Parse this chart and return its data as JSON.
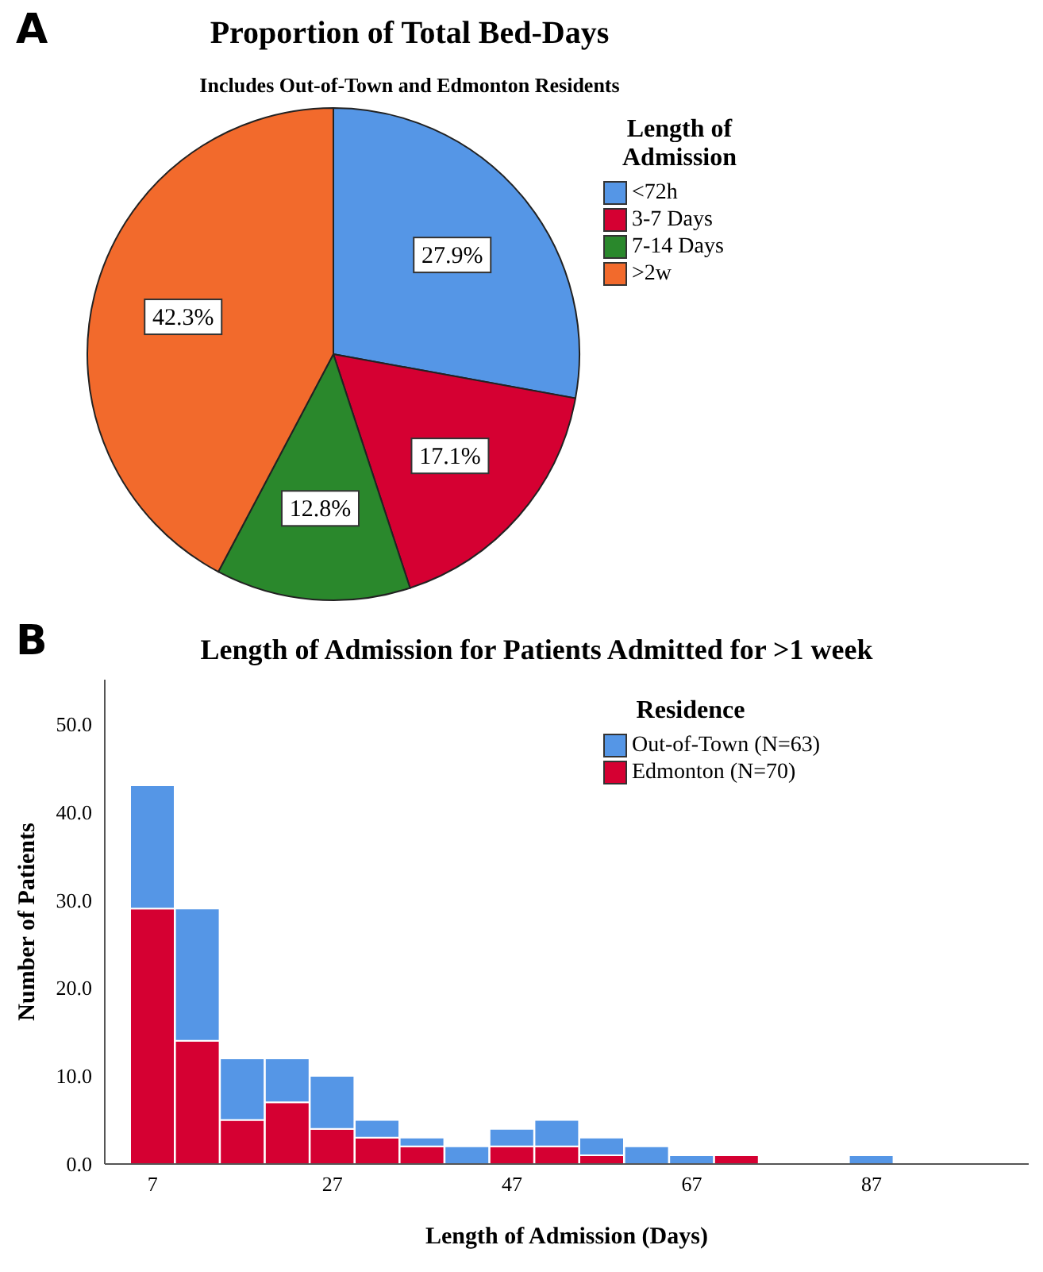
{
  "chart_data": [
    {
      "type": "pie",
      "title": "Proportion of Total Bed-Days",
      "subtitle": "Includes Out-of-Town and Edmonton Residents",
      "legend_title": "Length of Admission",
      "annotations": [
        "A"
      ],
      "legend": "right",
      "categories": [
        "<72h",
        "3-7 Days",
        "7-14 Days",
        ">2w"
      ],
      "values": [
        27.9,
        17.1,
        12.8,
        42.3
      ],
      "value_labels": [
        "27.9%",
        "17.1%",
        "12.8%",
        "42.3%"
      ],
      "colors": [
        "#5596e6",
        "#d50032",
        "#2a882c",
        "#f26a2c"
      ]
    },
    {
      "type": "bar",
      "title": "Length of Admission for Patients Admitted for >1 week",
      "xlabel": "Length of Admission (Days)",
      "ylabel": "Number of Patients",
      "legend_title": "Residence",
      "annotations": [
        "B"
      ],
      "legend": "top right",
      "stacked": true,
      "grid": false,
      "categories": [
        "7",
        null,
        null,
        null,
        "27",
        null,
        null,
        null,
        "47",
        null,
        null,
        null,
        "67",
        null,
        null,
        null,
        "87",
        null,
        null,
        null
      ],
      "series": [
        {
          "name": "Edmonton (N=70)",
          "color": "#d50032",
          "values": [
            29,
            14,
            5,
            7,
            4,
            3,
            2,
            0,
            2,
            2,
            1,
            0,
            0,
            1,
            0,
            0,
            0,
            null,
            null,
            null
          ]
        },
        {
          "name": "Out-of-Town (N=63)",
          "color": "#5596e6",
          "values": [
            14,
            15,
            7,
            5,
            6,
            2,
            1,
            2,
            2,
            3,
            2,
            2,
            1,
            0,
            0,
            0,
            1,
            null,
            null,
            null
          ]
        }
      ],
      "ylim": [
        0,
        55
      ],
      "yticks": [
        {
          "value": 0,
          "label": "0.0"
        },
        {
          "value": 10,
          "label": "10.0"
        },
        {
          "value": 20,
          "label": "20.0"
        },
        {
          "value": 30,
          "label": "30.0"
        },
        {
          "value": 40,
          "label": "40.0"
        },
        {
          "value": 50,
          "label": "50.0"
        }
      ]
    }
  ]
}
